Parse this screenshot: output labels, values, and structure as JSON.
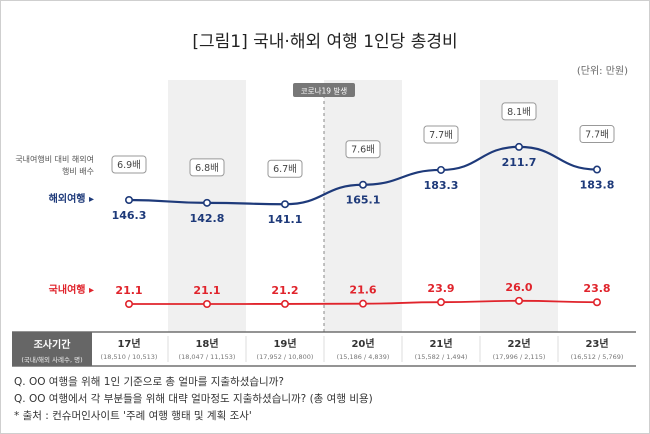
{
  "header": {
    "title": "[그림1] 국내·해외 여행 1인당 총경비",
    "unit": "(단위: 만원)"
  },
  "labels": {
    "ratio_note": "국내여행비 대비 해외여행비 배수",
    "overseas": "해외여행",
    "domestic": "국내여행",
    "survey_period": "조사기간",
    "survey_sub": "(국내/해외 사례수, 명)",
    "covid_note": "코로나19 발생"
  },
  "chart_data": {
    "type": "line",
    "title": "[그림1] 국내·해외 여행 1인당 총경비",
    "unit": "(단위: 만원)",
    "categories": [
      "17년",
      "18년",
      "19년",
      "20년",
      "21년",
      "22년",
      "23년"
    ],
    "category_sub": [
      "(18,510 / 10,513)",
      "(18,047 / 11,153)",
      "(17,952 / 10,800)",
      "(15,186 / 4,839)",
      "(15,582 / 1,494)",
      "(17,996 / 2,115)",
      "(16,512 / 5,769)"
    ],
    "series": [
      {
        "name": "해외여행",
        "values": [
          146.3,
          142.8,
          141.1,
          165.1,
          183.3,
          211.7,
          183.8
        ],
        "labels": [
          "146.3",
          "142.8",
          "141.1",
          "165.1",
          "183.3",
          "211.7",
          "183.8"
        ],
        "color": "#1e3a7a"
      },
      {
        "name": "국내여행",
        "values": [
          21.1,
          21.1,
          21.2,
          21.6,
          23.9,
          26.0,
          23.8
        ],
        "labels": [
          "21.1",
          "21.1",
          "21.2",
          "21.6",
          "23.9",
          "26.0",
          "23.8"
        ],
        "color": "#e0242c"
      }
    ],
    "ratio": [
      "6.9배",
      "6.8배",
      "6.7배",
      "7.6배",
      "7.7배",
      "8.1배",
      "7.7배"
    ],
    "annotation": "코로나19 발생",
    "shaded_categories": [
      "18년",
      "20년",
      "22년"
    ],
    "ylim": [
      0,
      240
    ],
    "grid": false
  },
  "footer": {
    "q1": "Q. OO 여행을 위해 1인 기준으로 총 얼마를 지출하셨습니까?",
    "q2": "Q. OO 여행에서 각 부분들을 위해 대략 얼마정도 지출하셨습니까? (총 여행 비용)",
    "source": "* 출처 : 컨슈머인사이트 '주례 여행 행태 및 계획 조사'"
  },
  "colors": {
    "overseas": "#1e3a7a",
    "domestic": "#e0242c",
    "shade": "#f0f0f0",
    "badge_border": "#999999",
    "header_cell": "#666666"
  }
}
